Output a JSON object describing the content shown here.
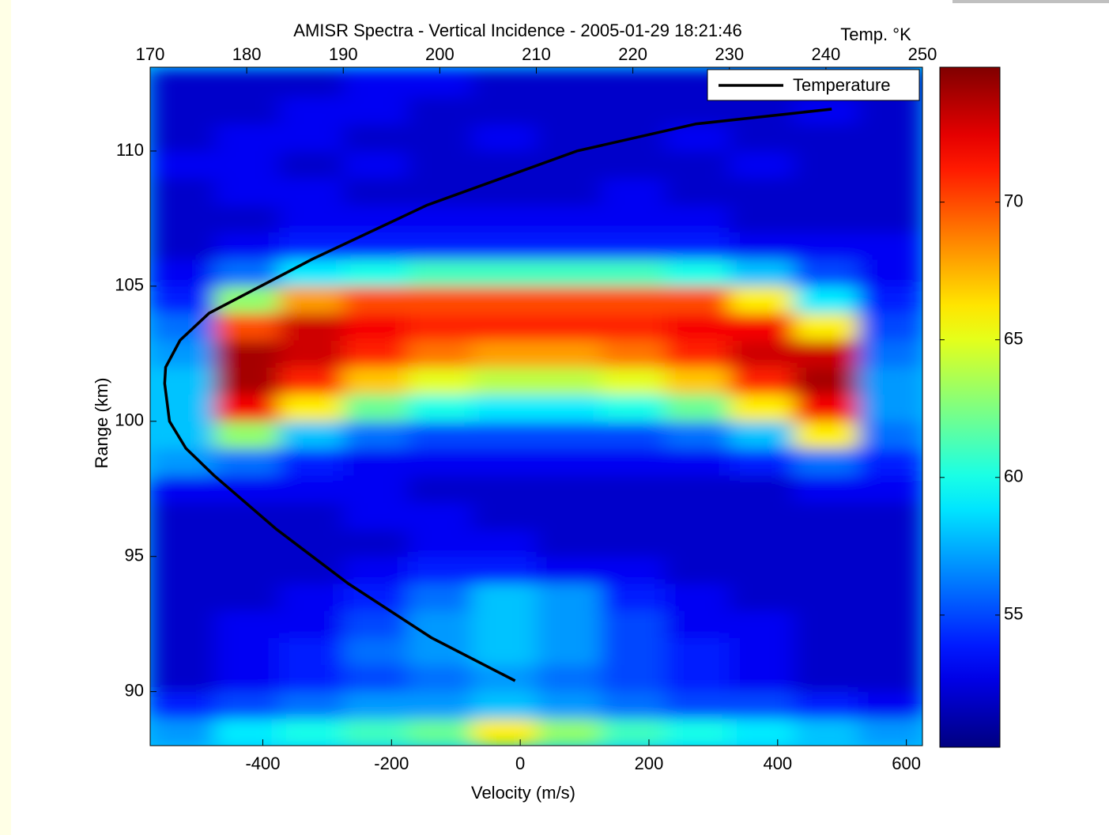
{
  "chart_data": {
    "type": "heatmap",
    "title": "AMISR Spectra - Vertical Incidence - 2005-01-29 18:21:46",
    "xlabel": "Velocity (m/s)",
    "ylabel": "Range (km)",
    "x2label": "Temp. °K",
    "xlim": [
      -575,
      625
    ],
    "xticks": [
      -400,
      -200,
      0,
      200,
      400,
      600
    ],
    "x2lim": [
      170,
      250
    ],
    "x2ticks": [
      170,
      180,
      190,
      200,
      210,
      220,
      230,
      240,
      250
    ],
    "ylim": [
      88,
      113.1
    ],
    "yticks": [
      90,
      95,
      100,
      105,
      110
    ],
    "colormap": "jet",
    "clim": [
      50.2,
      74.9
    ],
    "cticks": [
      55,
      60,
      65,
      70
    ],
    "x": [
      -525,
      -425,
      -325,
      -225,
      -125,
      -25,
      75,
      175,
      275,
      375,
      475,
      575
    ],
    "y": [
      88.5,
      89.5,
      90.5,
      91.5,
      92.5,
      93.5,
      94.5,
      95.5,
      96.5,
      97.5,
      98.5,
      99.5,
      100.5,
      101.5,
      102.5,
      103.5,
      104.5,
      105.5,
      106.5,
      107.5,
      108.5,
      109.5,
      110.5,
      111.5,
      112.5
    ],
    "z": [
      [
        57,
        59,
        60,
        61,
        62,
        66,
        63,
        61,
        60,
        59,
        58,
        57
      ],
      [
        54,
        55,
        56,
        57,
        57,
        58,
        57,
        56,
        55,
        55,
        54,
        53
      ],
      [
        52,
        53,
        54,
        55,
        56,
        57,
        56,
        55,
        54,
        53,
        52,
        52
      ],
      [
        52,
        53,
        54,
        56,
        57,
        58,
        57,
        55,
        54,
        53,
        52,
        52
      ],
      [
        52,
        53,
        53,
        55,
        57,
        58,
        57,
        55,
        53,
        53,
        52,
        52
      ],
      [
        52,
        52,
        53,
        54,
        56,
        58,
        57,
        54,
        53,
        52,
        52,
        52
      ],
      [
        52,
        52,
        52,
        53,
        54,
        54,
        53,
        53,
        52,
        52,
        52,
        52
      ],
      [
        52,
        52,
        52,
        52,
        53,
        53,
        52,
        52,
        52,
        52,
        52,
        52
      ],
      [
        52,
        52,
        52,
        53,
        53,
        52,
        52,
        52,
        52,
        52,
        52,
        52
      ],
      [
        53,
        53,
        53,
        53,
        52,
        52,
        52,
        52,
        52,
        52,
        53,
        53
      ],
      [
        57,
        56,
        54,
        53,
        53,
        53,
        53,
        53,
        53,
        54,
        56,
        54
      ],
      [
        58,
        63,
        58,
        56,
        55,
        55,
        55,
        55,
        56,
        58,
        66,
        56
      ],
      [
        58,
        72,
        66,
        62,
        60,
        59,
        59,
        60,
        62,
        66,
        72,
        57
      ],
      [
        58,
        74,
        71,
        67,
        65,
        64,
        64,
        65,
        67,
        71,
        74,
        57
      ],
      [
        57,
        74,
        73,
        71,
        69,
        68,
        68,
        69,
        71,
        73,
        73,
        56
      ],
      [
        56,
        70,
        73,
        72,
        71,
        71,
        71,
        71,
        72,
        72,
        66,
        55
      ],
      [
        54,
        63,
        68,
        70,
        70,
        70,
        70,
        70,
        70,
        66,
        59,
        54
      ],
      [
        53,
        56,
        59,
        60,
        61,
        61,
        61,
        61,
        60,
        58,
        55,
        53
      ],
      [
        52,
        53,
        54,
        54,
        54,
        54,
        54,
        54,
        54,
        53,
        53,
        53
      ],
      [
        52,
        52,
        53,
        53,
        53,
        53,
        53,
        53,
        53,
        52,
        52,
        52
      ],
      [
        52,
        53,
        53,
        52,
        52,
        52,
        52,
        53,
        52,
        52,
        52,
        52
      ],
      [
        53,
        53,
        52,
        53,
        52,
        52,
        52,
        52,
        52,
        53,
        52,
        52
      ],
      [
        52,
        53,
        53,
        52,
        52,
        53,
        52,
        52,
        53,
        52,
        52,
        52
      ],
      [
        52,
        52,
        53,
        53,
        52,
        52,
        52,
        52,
        52,
        52,
        53,
        52
      ],
      [
        52,
        52,
        52,
        53,
        53,
        52,
        52,
        52,
        52,
        52,
        52,
        52
      ]
    ],
    "series": [
      {
        "name": "Temperature",
        "color": "#000000",
        "axis": "x2",
        "x": [
          240.6,
          226.5,
          214.2,
          198.7,
          186.8,
          176.1,
          173.1,
          171.6,
          171.5,
          172.0,
          173.7,
          176.6,
          183.1,
          190.5,
          199.1,
          207.8
        ],
        "y": [
          111.55,
          111,
          110,
          108,
          106,
          104,
          103,
          102,
          101.4,
          100,
          99,
          98,
          96,
          94,
          92,
          90.4
        ]
      }
    ],
    "legend": "upper right"
  }
}
